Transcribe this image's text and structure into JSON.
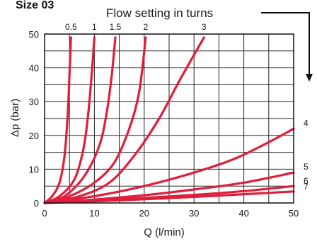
{
  "chart_data": {
    "type": "line",
    "title": "Size 03",
    "subtitle": "Flow setting in turns",
    "xlabel": "Q (l/min)",
    "ylabel": "Δp (bar)",
    "xlim": [
      0,
      50
    ],
    "ylim": [
      0,
      50
    ],
    "x_ticks": [
      0,
      10,
      20,
      30,
      40,
      50
    ],
    "y_ticks": [
      0,
      10,
      20,
      30,
      40,
      50
    ],
    "grid": true,
    "line_color": "#e01e3c",
    "series": [
      {
        "name": "0.5",
        "points": [
          [
            0,
            0
          ],
          [
            1.5,
            2
          ],
          [
            3,
            6
          ],
          [
            4,
            14
          ],
          [
            4.6,
            25
          ],
          [
            5,
            38
          ],
          [
            5.3,
            49
          ]
        ]
      },
      {
        "name": "1",
        "points": [
          [
            0,
            0
          ],
          [
            3,
            2
          ],
          [
            6,
            7
          ],
          [
            7.8,
            16
          ],
          [
            8.8,
            27
          ],
          [
            9.5,
            39
          ],
          [
            10,
            49
          ]
        ]
      },
      {
        "name": "1.5",
        "points": [
          [
            0,
            0
          ],
          [
            4,
            2
          ],
          [
            8,
            8
          ],
          [
            11,
            17
          ],
          [
            12.5,
            27
          ],
          [
            13.5,
            38
          ],
          [
            14.2,
            49
          ]
        ]
      },
      {
        "name": "2",
        "points": [
          [
            0,
            0
          ],
          [
            5,
            2
          ],
          [
            10,
            6
          ],
          [
            14,
            12
          ],
          [
            17,
            22
          ],
          [
            19,
            33
          ],
          [
            20.3,
            49
          ]
        ]
      },
      {
        "name": "3",
        "points": [
          [
            0,
            0
          ],
          [
            7,
            2
          ],
          [
            13,
            6
          ],
          [
            18,
            14
          ],
          [
            23,
            25
          ],
          [
            27,
            36
          ],
          [
            32,
            49
          ]
        ]
      },
      {
        "name": "4",
        "points": [
          [
            0,
            0
          ],
          [
            10,
            2
          ],
          [
            20,
            5
          ],
          [
            30,
            9
          ],
          [
            38,
            13
          ],
          [
            45,
            18
          ],
          [
            50,
            22
          ]
        ]
      },
      {
        "name": "5",
        "points": [
          [
            0,
            0
          ],
          [
            10,
            1
          ],
          [
            20,
            2.3
          ],
          [
            30,
            4
          ],
          [
            40,
            6
          ],
          [
            50,
            9
          ]
        ]
      },
      {
        "name": "6",
        "points": [
          [
            0,
            0
          ],
          [
            10,
            0.7
          ],
          [
            20,
            1.5
          ],
          [
            30,
            2.4
          ],
          [
            40,
            3.5
          ],
          [
            50,
            5
          ]
        ]
      },
      {
        "name": "7",
        "points": [
          [
            0,
            0
          ],
          [
            10,
            0.5
          ],
          [
            20,
            1.1
          ],
          [
            30,
            1.8
          ],
          [
            40,
            2.6
          ],
          [
            50,
            3.4
          ]
        ]
      }
    ]
  }
}
